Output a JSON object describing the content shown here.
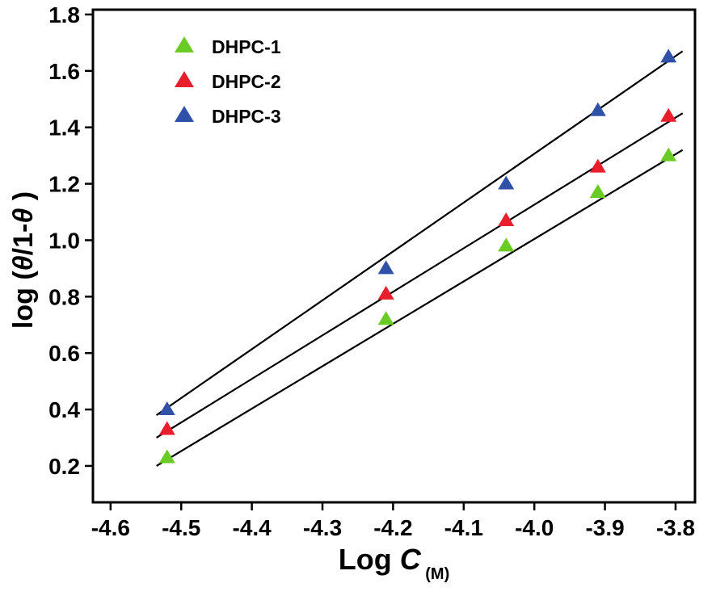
{
  "chart_data": {
    "type": "scatter",
    "title": "",
    "xlabel": "Log C (M)",
    "xlabel_parts": [
      {
        "text": "Log "
      },
      {
        "text": "C",
        "italic": true
      },
      {
        "text": " (M)",
        "sub": true
      }
    ],
    "ylabel": "log (θ/1-θ )",
    "ylabel_parts": [
      {
        "text": "log ("
      },
      {
        "text": "θ",
        "italic": true
      },
      {
        "text": "/1-"
      },
      {
        "text": "θ",
        "italic": true
      },
      {
        "text": " )"
      }
    ],
    "xlim": [
      -4.625,
      -3.7725
    ],
    "ylim": [
      0.071,
      1.817
    ],
    "grid": false,
    "frame_color": "#000000",
    "fit_line_color": "#000000",
    "legend": {
      "position": "top-left-inside"
    },
    "x_ticks": {
      "values": [
        -4.6,
        -4.5,
        -4.4,
        -4.3,
        -4.2,
        -4.1,
        -4.0,
        -3.9,
        -3.8
      ],
      "labels": [
        "-4.6",
        "-4.5",
        "-4.4",
        "-4.3",
        "-4.2",
        "-4.1",
        "-4.0",
        "-3.9",
        "-3.8"
      ]
    },
    "y_ticks": {
      "values": [
        0.2,
        0.4,
        0.6,
        0.8,
        1.0,
        1.2,
        1.4,
        1.6,
        1.8
      ],
      "labels": [
        "0.2",
        "0.4",
        "0.6",
        "0.8",
        "1.0",
        "1.2",
        "1.4",
        "1.6",
        "1.8"
      ]
    },
    "series": [
      {
        "name": "DHPC-1",
        "color": "#6bcb25",
        "marker": "triangle-up",
        "points": [
          [
            -4.52,
            0.23
          ],
          [
            -4.21,
            0.72
          ],
          [
            -4.04,
            0.98
          ],
          [
            -3.91,
            1.17
          ],
          [
            -3.81,
            1.3
          ]
        ],
        "fit_line": {
          "x1": -4.535,
          "y1": 0.2,
          "x2": -3.79,
          "y2": 1.32
        }
      },
      {
        "name": "DHPC-2",
        "color": "#e81e2c",
        "marker": "triangle-up",
        "points": [
          [
            -4.52,
            0.33
          ],
          [
            -4.21,
            0.81
          ],
          [
            -4.04,
            1.07
          ],
          [
            -3.91,
            1.26
          ],
          [
            -3.81,
            1.44
          ]
        ],
        "fit_line": {
          "x1": -4.535,
          "y1": 0.3,
          "x2": -3.79,
          "y2": 1.45
        }
      },
      {
        "name": "DHPC-3",
        "color": "#2f52a8",
        "marker": "triangle-up",
        "points": [
          [
            -4.52,
            0.4
          ],
          [
            -4.21,
            0.9
          ],
          [
            -4.04,
            1.2
          ],
          [
            -3.91,
            1.46
          ],
          [
            -3.81,
            1.65
          ]
        ],
        "fit_line": {
          "x1": -4.535,
          "y1": 0.38,
          "x2": -3.79,
          "y2": 1.67
        }
      }
    ]
  }
}
